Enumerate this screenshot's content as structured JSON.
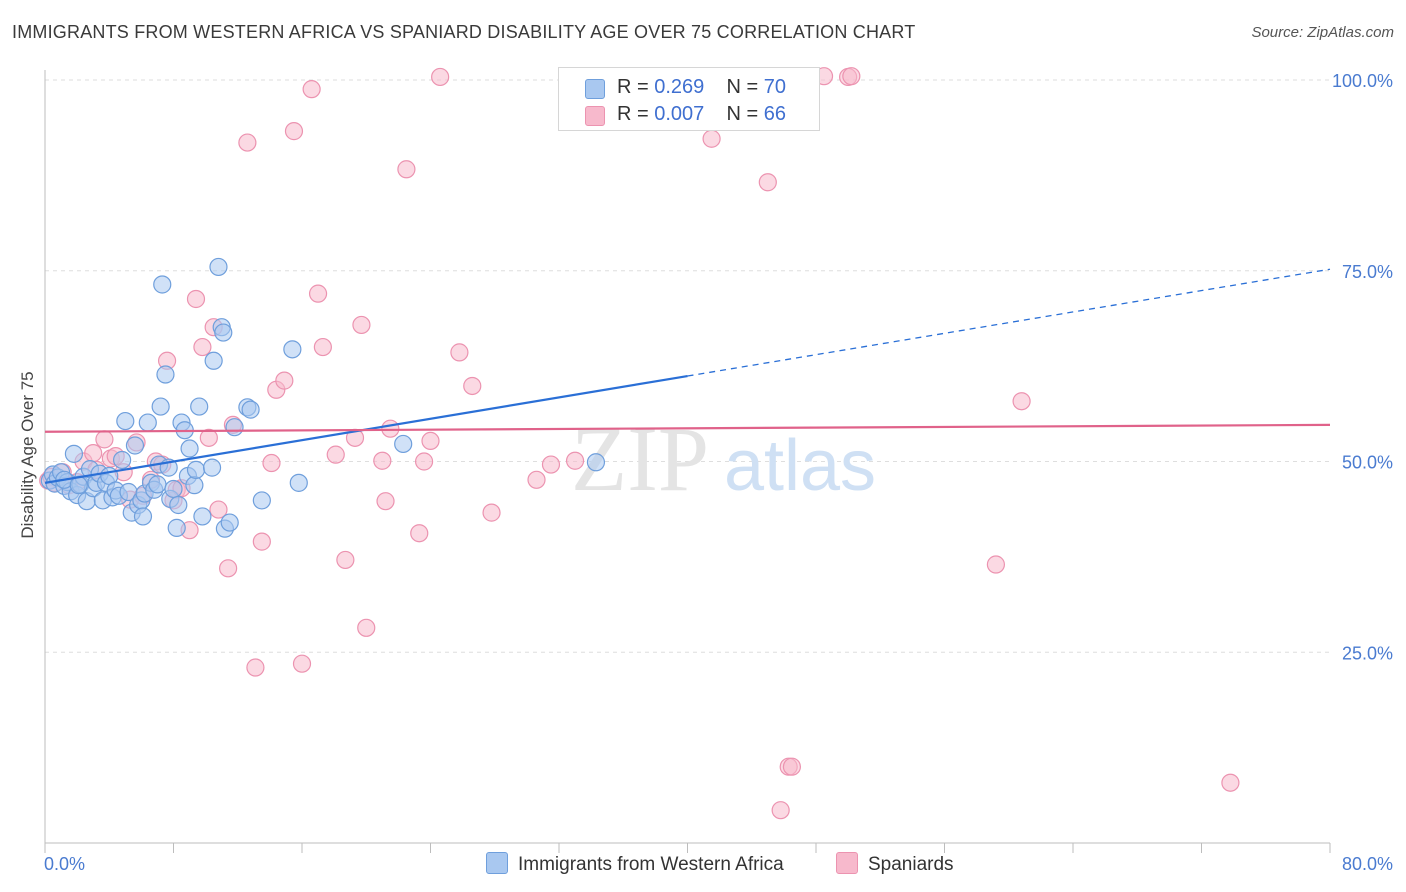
{
  "header": {
    "title": "IMMIGRANTS FROM WESTERN AFRICA VS SPANIARD DISABILITY AGE OVER 75 CORRELATION CHART",
    "source": "Source: ZipAtlas.com"
  },
  "watermark": {
    "zip": "ZIP",
    "atlas": "atlas"
  },
  "legend": {
    "rows": [
      {
        "r_label": "R = ",
        "r_value": "0.269",
        "n_label": "N = ",
        "n_value": "70"
      },
      {
        "r_label": "R = ",
        "r_value": "0.007",
        "n_label": "N = ",
        "n_value": "66"
      }
    ]
  },
  "colors": {
    "blue_fill": "#a9c8f0",
    "blue_stroke": "#6f9fdc",
    "blue_line": "#2a6fd6",
    "pink_fill": "#f7b9cc",
    "pink_stroke": "#ec93b0",
    "pink_line": "#e0628a",
    "tick_text": "#4a7bd0",
    "grid": "#dedede"
  },
  "chart_data": {
    "type": "scatter",
    "title": "IMMIGRANTS FROM WESTERN AFRICA VS SPANIARD DISABILITY AGE OVER 75 CORRELATION CHART",
    "xlabel": "",
    "ylabel": "Disability Age Over 75",
    "xlim": [
      0,
      80
    ],
    "ylim": [
      0,
      102
    ],
    "x_tick_labels": [
      "0.0%",
      "80.0%"
    ],
    "y_ticks": [
      25,
      50,
      75,
      100
    ],
    "y_tick_labels": [
      "25.0%",
      "50.0%",
      "75.0%",
      "100.0%"
    ],
    "grid": true,
    "legend_position": "top-center",
    "series": [
      {
        "name": "Immigrants from Western Africa",
        "color": "#a9c8f0",
        "r": 0.269,
        "n": 70,
        "trend": {
          "x0": 0,
          "y0": 47.2,
          "x1": 40,
          "y1": 61.2,
          "dashed_to_x": 80,
          "dashed_to_y": 75.2
        },
        "points": [
          [
            0.3,
            47.5
          ],
          [
            0.5,
            48.3
          ],
          [
            0.6,
            47.1
          ],
          [
            0.8,
            47.9
          ],
          [
            1.0,
            48.6
          ],
          [
            1.2,
            46.8
          ],
          [
            1.4,
            47.3
          ],
          [
            1.6,
            46.1
          ],
          [
            1.8,
            51.0
          ],
          [
            2.0,
            45.6
          ],
          [
            2.2,
            47.0
          ],
          [
            2.4,
            48.0
          ],
          [
            2.6,
            44.8
          ],
          [
            2.8,
            49.0
          ],
          [
            3.0,
            46.5
          ],
          [
            3.2,
            47.2
          ],
          [
            3.4,
            48.4
          ],
          [
            3.6,
            44.9
          ],
          [
            3.8,
            47.2
          ],
          [
            4.0,
            48.1
          ],
          [
            4.2,
            45.3
          ],
          [
            4.4,
            46.2
          ],
          [
            4.6,
            45.5
          ],
          [
            4.8,
            50.2
          ],
          [
            5.0,
            55.3
          ],
          [
            5.2,
            46.0
          ],
          [
            5.4,
            43.3
          ],
          [
            5.6,
            52.1
          ],
          [
            5.8,
            44.3
          ],
          [
            6.0,
            44.9
          ],
          [
            6.1,
            42.8
          ],
          [
            6.2,
            45.8
          ],
          [
            6.4,
            55.1
          ],
          [
            6.6,
            47.2
          ],
          [
            6.8,
            46.3
          ],
          [
            7.0,
            47.0
          ],
          [
            7.1,
            49.6
          ],
          [
            7.2,
            57.2
          ],
          [
            7.3,
            73.2
          ],
          [
            7.5,
            61.4
          ],
          [
            7.7,
            49.2
          ],
          [
            7.8,
            45.1
          ],
          [
            8.0,
            46.4
          ],
          [
            8.2,
            41.3
          ],
          [
            8.3,
            44.3
          ],
          [
            8.5,
            55.1
          ],
          [
            8.7,
            54.1
          ],
          [
            8.9,
            48.1
          ],
          [
            9.0,
            51.7
          ],
          [
            9.3,
            46.9
          ],
          [
            9.4,
            48.9
          ],
          [
            9.6,
            57.2
          ],
          [
            9.8,
            42.8
          ],
          [
            10.4,
            49.2
          ],
          [
            10.5,
            63.2
          ],
          [
            10.8,
            75.5
          ],
          [
            11.0,
            67.6
          ],
          [
            11.1,
            66.9
          ],
          [
            11.2,
            41.2
          ],
          [
            11.5,
            42.0
          ],
          [
            11.8,
            54.5
          ],
          [
            12.6,
            57.1
          ],
          [
            12.8,
            56.8
          ],
          [
            13.5,
            44.9
          ],
          [
            15.4,
            64.7
          ],
          [
            15.8,
            47.2
          ],
          [
            22.3,
            52.3
          ],
          [
            34.3,
            49.9
          ],
          [
            1.2,
            47.6
          ],
          [
            2.1,
            46.9
          ]
        ]
      },
      {
        "name": "Spaniards",
        "color": "#f7b9cc",
        "r": 0.007,
        "n": 66,
        "trend": {
          "x0": 0,
          "y0": 53.9,
          "x1": 80,
          "y1": 54.8
        },
        "points": [
          [
            0.2,
            47.5
          ],
          [
            0.4,
            48.0
          ],
          [
            0.6,
            47.2
          ],
          [
            1.1,
            48.6
          ],
          [
            1.5,
            46.9
          ],
          [
            2.0,
            47.3
          ],
          [
            2.4,
            50.0
          ],
          [
            3.0,
            51.1
          ],
          [
            3.2,
            48.9
          ],
          [
            3.7,
            52.9
          ],
          [
            4.1,
            50.4
          ],
          [
            4.4,
            50.7
          ],
          [
            4.9,
            48.6
          ],
          [
            5.3,
            45.0
          ],
          [
            5.7,
            52.5
          ],
          [
            6.1,
            45.5
          ],
          [
            6.6,
            47.6
          ],
          [
            6.9,
            50.0
          ],
          [
            7.3,
            49.6
          ],
          [
            7.6,
            63.2
          ],
          [
            8.0,
            44.9
          ],
          [
            8.2,
            46.3
          ],
          [
            8.5,
            46.5
          ],
          [
            9.0,
            41.0
          ],
          [
            9.4,
            71.3
          ],
          [
            9.8,
            65.0
          ],
          [
            10.2,
            53.1
          ],
          [
            10.5,
            67.6
          ],
          [
            10.8,
            43.7
          ],
          [
            11.4,
            36.0
          ],
          [
            11.7,
            54.8
          ],
          [
            12.6,
            91.8
          ],
          [
            13.1,
            23.0
          ],
          [
            13.5,
            39.5
          ],
          [
            14.1,
            49.8
          ],
          [
            14.4,
            59.4
          ],
          [
            14.9,
            60.6
          ],
          [
            15.5,
            93.3
          ],
          [
            16.0,
            23.5
          ],
          [
            16.6,
            98.8
          ],
          [
            17.0,
            72.0
          ],
          [
            17.3,
            65.0
          ],
          [
            18.1,
            50.9
          ],
          [
            18.7,
            37.1
          ],
          [
            19.3,
            53.1
          ],
          [
            19.7,
            67.9
          ],
          [
            20.0,
            28.2
          ],
          [
            21.0,
            50.1
          ],
          [
            21.2,
            44.8
          ],
          [
            21.5,
            54.3
          ],
          [
            22.5,
            88.3
          ],
          [
            23.3,
            40.6
          ],
          [
            23.6,
            50.0
          ],
          [
            24.0,
            52.7
          ],
          [
            24.6,
            100.4
          ],
          [
            25.8,
            64.3
          ],
          [
            26.6,
            59.9
          ],
          [
            27.8,
            43.3
          ],
          [
            30.6,
            47.6
          ],
          [
            31.5,
            49.6
          ],
          [
            33.0,
            50.1
          ],
          [
            41.5,
            92.3
          ],
          [
            45.0,
            86.6
          ],
          [
            46.3,
            10.0
          ],
          [
            45.8,
            4.3
          ],
          [
            48.5,
            100.5
          ]
        ]
      }
    ],
    "extra_points_spaniards": [
      [
        50.0,
        100.4
      ],
      [
        50.2,
        100.5
      ],
      [
        59.2,
        36.5
      ],
      [
        60.8,
        57.9
      ],
      [
        73.8,
        7.9
      ],
      [
        46.5,
        10.0
      ]
    ]
  },
  "bottom_legend": [
    {
      "label": "Immigrants from Western Africa"
    },
    {
      "label": "Spaniards"
    }
  ]
}
